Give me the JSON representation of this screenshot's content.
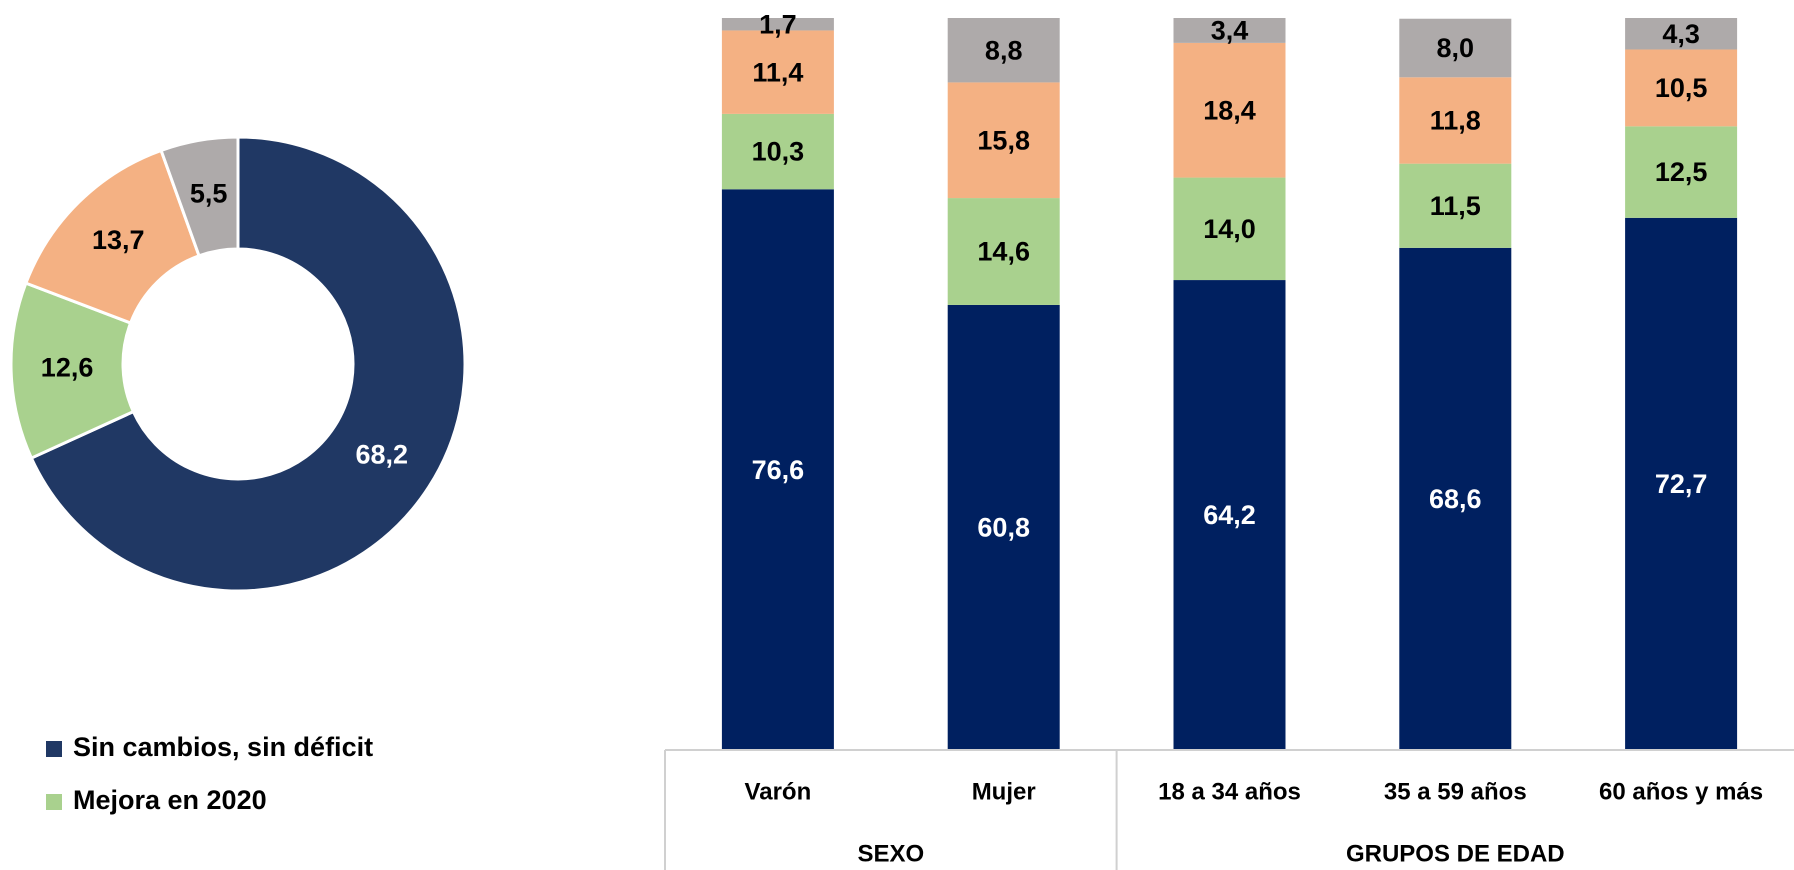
{
  "chart_data": [
    {
      "type": "donut",
      "categories": [
        "Sin cambios, sin déficit",
        "Mejora en 2020",
        null,
        null
      ],
      "values": [
        68.2,
        12.6,
        13.7,
        5.5
      ],
      "value_labels": [
        "68,2",
        "12,6",
        "13,7",
        "5,5"
      ],
      "colors": [
        "#203864",
        "#a9d18e",
        "#f4b183",
        "#aeaaaa"
      ],
      "legend": "bottom-left"
    },
    {
      "type": "stacked_bar",
      "categories": [
        "Varón",
        "Mujer",
        "18 a 34 años",
        "35 a 59 años",
        "60 años y más"
      ],
      "category_groups": [
        "SEXO",
        "SEXO",
        "GRUPOS DE EDAD",
        "GRUPOS DE EDAD",
        "GRUPOS DE EDAD"
      ],
      "ylim": [
        0,
        100
      ],
      "series": [
        {
          "color": "#002060",
          "values": [
            76.6,
            60.8,
            64.2,
            68.6,
            72.7
          ],
          "value_labels": [
            "76,6",
            "60,8",
            "64,2",
            "68,6",
            "72,7"
          ]
        },
        {
          "color": "#a9d18e",
          "values": [
            10.3,
            14.6,
            14.0,
            11.5,
            12.5
          ],
          "value_labels": [
            "10,3",
            "14,6",
            "14,0",
            "11,5",
            "12,5"
          ]
        },
        {
          "color": "#f4b183",
          "values": [
            11.4,
            15.8,
            18.4,
            11.8,
            10.5
          ],
          "value_labels": [
            "11,4",
            "15,8",
            "18,4",
            "11,8",
            "10,5"
          ]
        },
        {
          "color": "#aeaaaa",
          "values": [
            1.7,
            8.8,
            3.4,
            8.0,
            4.3
          ],
          "value_labels": [
            "1,7",
            "8,8",
            "3,4",
            "8,0",
            "4,3"
          ]
        }
      ]
    }
  ]
}
